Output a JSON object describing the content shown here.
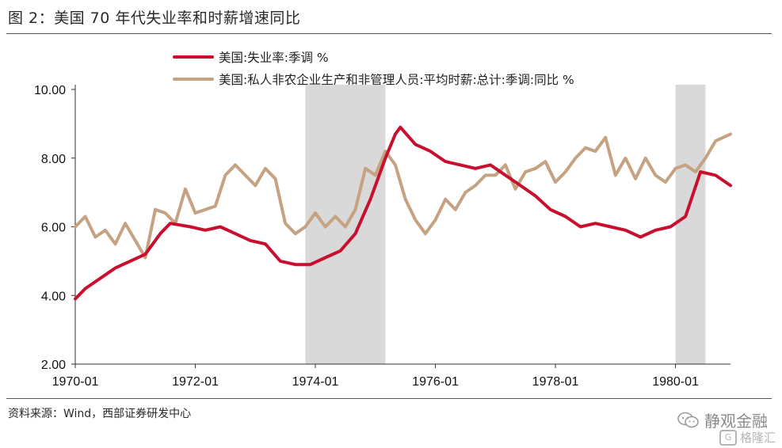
{
  "title": "图 2：美国 70 年代失业率和时薪增速同比",
  "source": "资料来源：Wind，西部证券研发中心",
  "watermark": "静观金融",
  "watermark2": "格隆汇",
  "colors": {
    "unemployment": "#c8102e",
    "wage": "#c4a282",
    "recession": "#d9d9d9"
  },
  "chart_data": {
    "type": "line",
    "title": "",
    "xlabel": "",
    "ylabel": "",
    "ylim": [
      2,
      10
    ],
    "yticks": [
      "2.00",
      "4.00",
      "6.00",
      "8.00",
      "10.00"
    ],
    "xticks": [
      "1970-01",
      "1972-01",
      "1974-01",
      "1976-01",
      "1978-01",
      "1980-01"
    ],
    "xrange": [
      "1970-01",
      "1980-12"
    ],
    "legend_position": "top-center",
    "shaded_periods": [
      [
        "1973-11",
        "1975-03"
      ],
      [
        "1980-01",
        "1980-07"
      ]
    ],
    "series": [
      {
        "name": "美国:失业率:季调 %",
        "color": "#c8102e",
        "points": [
          [
            "1970-01",
            3.9
          ],
          [
            "1970-03",
            4.2
          ],
          [
            "1970-06",
            4.5
          ],
          [
            "1970-09",
            4.8
          ],
          [
            "1970-12",
            5.0
          ],
          [
            "1971-03",
            5.2
          ],
          [
            "1971-06",
            5.8
          ],
          [
            "1971-08",
            6.1
          ],
          [
            "1971-12",
            6.0
          ],
          [
            "1972-03",
            5.9
          ],
          [
            "1972-06",
            6.0
          ],
          [
            "1972-09",
            5.8
          ],
          [
            "1972-12",
            5.6
          ],
          [
            "1973-03",
            5.5
          ],
          [
            "1973-06",
            5.0
          ],
          [
            "1973-09",
            4.9
          ],
          [
            "1973-12",
            4.9
          ],
          [
            "1974-03",
            5.1
          ],
          [
            "1974-06",
            5.3
          ],
          [
            "1974-09",
            5.8
          ],
          [
            "1974-12",
            6.8
          ],
          [
            "1975-03",
            8.0
          ],
          [
            "1975-05",
            8.7
          ],
          [
            "1975-06",
            8.9
          ],
          [
            "1975-09",
            8.4
          ],
          [
            "1975-12",
            8.2
          ],
          [
            "1976-03",
            7.9
          ],
          [
            "1976-06",
            7.8
          ],
          [
            "1976-09",
            7.7
          ],
          [
            "1976-12",
            7.8
          ],
          [
            "1977-03",
            7.5
          ],
          [
            "1977-06",
            7.2
          ],
          [
            "1977-09",
            6.9
          ],
          [
            "1977-12",
            6.5
          ],
          [
            "1978-03",
            6.3
          ],
          [
            "1978-06",
            6.0
          ],
          [
            "1978-09",
            6.1
          ],
          [
            "1978-12",
            6.0
          ],
          [
            "1979-03",
            5.9
          ],
          [
            "1979-06",
            5.7
          ],
          [
            "1979-09",
            5.9
          ],
          [
            "1979-12",
            6.0
          ],
          [
            "1980-03",
            6.3
          ],
          [
            "1980-06",
            7.6
          ],
          [
            "1980-09",
            7.5
          ],
          [
            "1980-12",
            7.2
          ]
        ]
      },
      {
        "name": "美国:私人非农企业生产和非管理人员:平均时薪:总计:季调:同比 %",
        "color": "#c4a282",
        "points": [
          [
            "1970-01",
            6.0
          ],
          [
            "1970-03",
            6.3
          ],
          [
            "1970-05",
            5.7
          ],
          [
            "1970-07",
            5.9
          ],
          [
            "1970-09",
            5.5
          ],
          [
            "1970-11",
            6.1
          ],
          [
            "1971-01",
            5.6
          ],
          [
            "1971-03",
            5.1
          ],
          [
            "1971-05",
            6.5
          ],
          [
            "1971-07",
            6.4
          ],
          [
            "1971-09",
            6.1
          ],
          [
            "1971-11",
            7.1
          ],
          [
            "1972-01",
            6.4
          ],
          [
            "1972-03",
            6.5
          ],
          [
            "1972-05",
            6.6
          ],
          [
            "1972-07",
            7.5
          ],
          [
            "1972-09",
            7.8
          ],
          [
            "1972-11",
            7.5
          ],
          [
            "1973-01",
            7.2
          ],
          [
            "1973-03",
            7.7
          ],
          [
            "1973-05",
            7.4
          ],
          [
            "1973-07",
            6.1
          ],
          [
            "1973-09",
            5.8
          ],
          [
            "1973-11",
            6.0
          ],
          [
            "1974-01",
            6.4
          ],
          [
            "1974-03",
            6.0
          ],
          [
            "1974-05",
            6.3
          ],
          [
            "1974-07",
            6.0
          ],
          [
            "1974-09",
            6.5
          ],
          [
            "1974-11",
            7.7
          ],
          [
            "1975-01",
            7.5
          ],
          [
            "1975-03",
            8.2
          ],
          [
            "1975-05",
            7.8
          ],
          [
            "1975-07",
            6.8
          ],
          [
            "1975-09",
            6.2
          ],
          [
            "1975-11",
            5.8
          ],
          [
            "1976-01",
            6.2
          ],
          [
            "1976-03",
            6.8
          ],
          [
            "1976-05",
            6.5
          ],
          [
            "1976-07",
            7.0
          ],
          [
            "1976-09",
            7.2
          ],
          [
            "1976-11",
            7.5
          ],
          [
            "1977-01",
            7.5
          ],
          [
            "1977-03",
            7.8
          ],
          [
            "1977-05",
            7.1
          ],
          [
            "1977-07",
            7.6
          ],
          [
            "1977-09",
            7.7
          ],
          [
            "1977-11",
            7.9
          ],
          [
            "1978-01",
            7.3
          ],
          [
            "1978-03",
            7.6
          ],
          [
            "1978-05",
            8.0
          ],
          [
            "1978-07",
            8.3
          ],
          [
            "1978-09",
            8.2
          ],
          [
            "1978-11",
            8.6
          ],
          [
            "1979-01",
            7.5
          ],
          [
            "1979-03",
            8.0
          ],
          [
            "1979-05",
            7.4
          ],
          [
            "1979-07",
            8.0
          ],
          [
            "1979-09",
            7.5
          ],
          [
            "1979-11",
            7.3
          ],
          [
            "1980-01",
            7.7
          ],
          [
            "1980-03",
            7.8
          ],
          [
            "1980-05",
            7.6
          ],
          [
            "1980-07",
            8.0
          ],
          [
            "1980-09",
            8.5
          ],
          [
            "1980-12",
            8.7
          ]
        ]
      }
    ]
  }
}
